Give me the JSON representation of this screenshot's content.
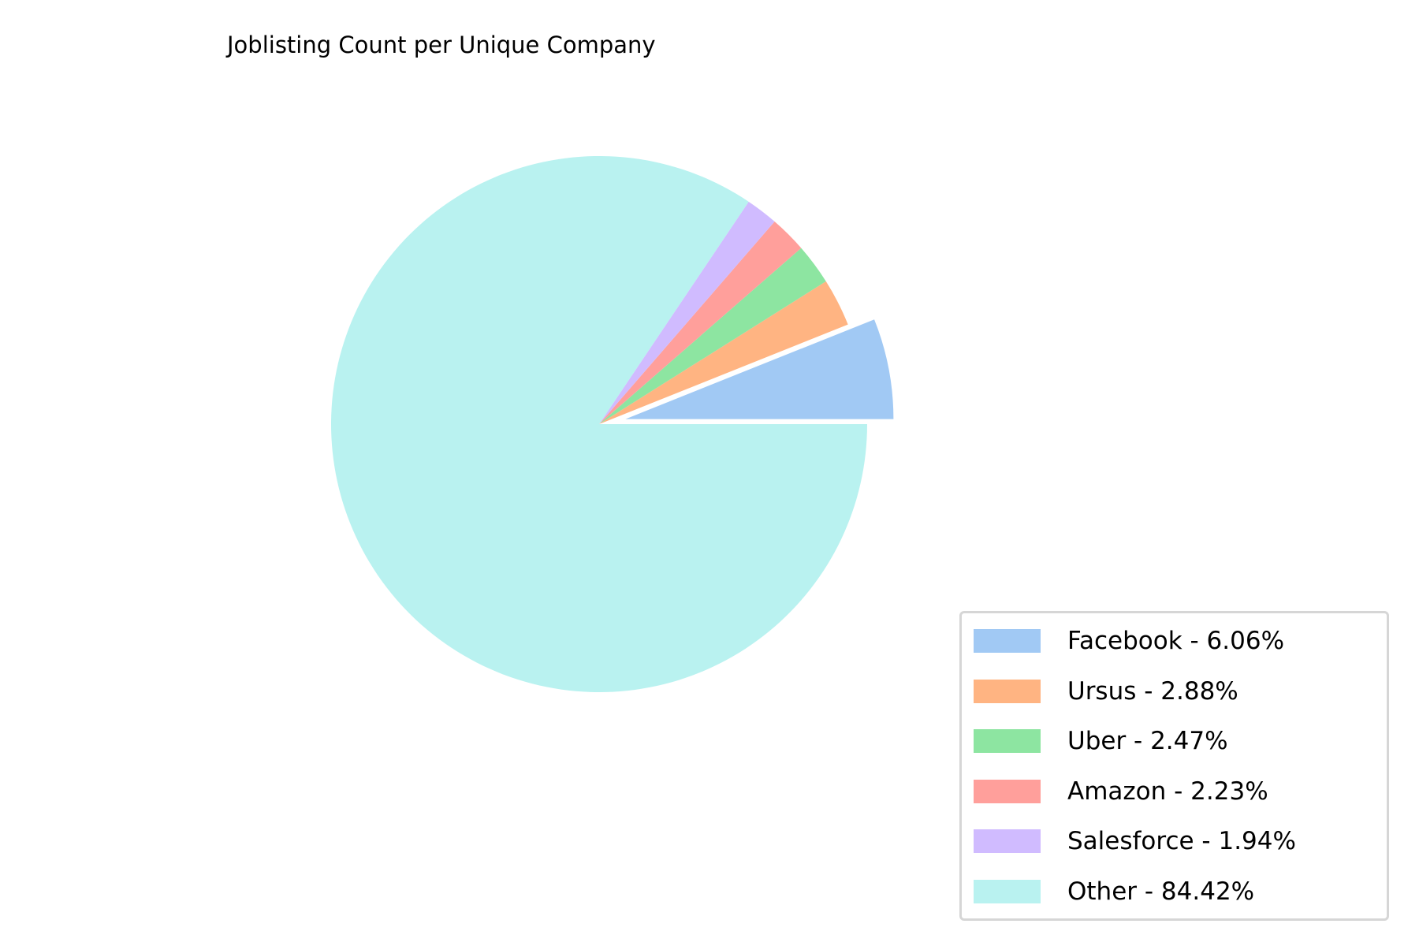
{
  "chart_data": {
    "type": "pie",
    "title": "Joblisting Count per Unique Company",
    "slices": [
      {
        "name": "Facebook",
        "value": 6.06,
        "label": "Facebook - 6.06%",
        "color": "#a1c9f4",
        "exploded": true
      },
      {
        "name": "Ursus",
        "value": 2.88,
        "label": "Ursus - 2.88%",
        "color": "#ffb482",
        "exploded": false
      },
      {
        "name": "Uber",
        "value": 2.47,
        "label": "Uber - 2.47%",
        "color": "#8de5a1",
        "exploded": false
      },
      {
        "name": "Amazon",
        "value": 2.23,
        "label": "Amazon - 2.23%",
        "color": "#ff9f9b",
        "exploded": false
      },
      {
        "name": "Salesforce",
        "value": 1.94,
        "label": "Salesforce - 1.94%",
        "color": "#d0bbff",
        "exploded": false
      },
      {
        "name": "Other",
        "value": 84.42,
        "label": "Other - 84.42%",
        "color": "#b9f2f0",
        "exploded": false
      }
    ],
    "start_angle": 0,
    "direction": "counterclockwise",
    "legend_position": "lower-right"
  }
}
